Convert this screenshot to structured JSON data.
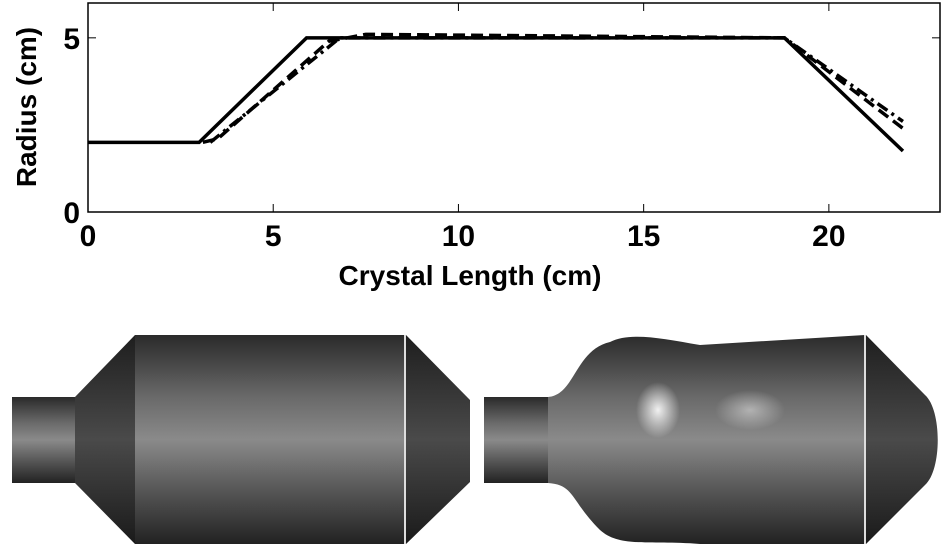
{
  "chart_data": {
    "type": "line",
    "x_label": "Crystal Length (cm)",
    "y_label": "Radius (cm)",
    "xlim": [
      0,
      23
    ],
    "ylim": [
      0,
      6
    ],
    "xticks": [
      0,
      5,
      10,
      15,
      20
    ],
    "yticks": [
      0,
      5
    ],
    "series": [
      {
        "color": "#000000",
        "line_style": "solid",
        "x": [
          0,
          3,
          5.9,
          18.8,
          22
        ],
        "values": [
          2,
          2,
          5,
          5,
          1.75
        ]
      },
      {
        "color": "#000000",
        "line_style": "dashed",
        "x": [
          3.1,
          3.5,
          6.5,
          7.5,
          18.8,
          22
        ],
        "values": [
          2,
          2.1,
          4.9,
          5.1,
          5,
          2.4
        ]
      },
      {
        "color": "#000000",
        "line_style": "dashdot",
        "x": [
          3.3,
          6.8,
          18.8,
          22
        ],
        "values": [
          2,
          5,
          5,
          2.6
        ]
      }
    ]
  }
}
